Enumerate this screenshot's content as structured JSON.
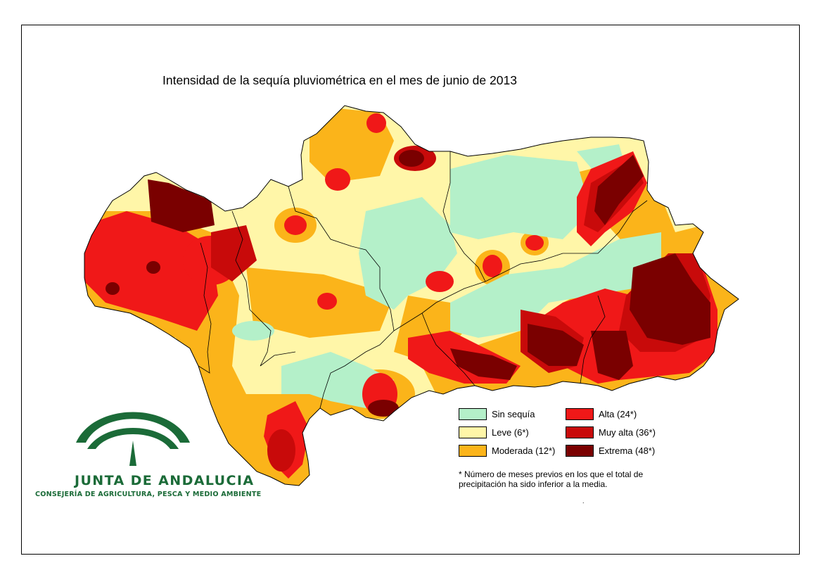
{
  "title": "Intensidad de la sequía pluviométrica en el mes de junio de 2013",
  "colors": {
    "sin_sequia": "#b4f0c9",
    "leve": "#fff6a8",
    "moderada": "#fbb41a",
    "alta": "#f01818",
    "muy_alta": "#c80a0a",
    "extrema": "#7a0000",
    "logo_green": "#1b6b38"
  },
  "legend": {
    "items": [
      {
        "key": "sin_sequia",
        "label": "Sin sequía",
        "color": "#b4f0c9"
      },
      {
        "key": "leve",
        "label": "Leve (6*)",
        "color": "#fff6a8"
      },
      {
        "key": "moderada",
        "label": "Moderada (12*)",
        "color": "#fbb41a"
      },
      {
        "key": "alta",
        "label": "Alta (24*)",
        "color": "#f01818"
      },
      {
        "key": "muy_alta",
        "label": "Muy alta (36*)",
        "color": "#c80a0a"
      },
      {
        "key": "extrema",
        "label": "Extrema (48*)",
        "color": "#7a0000"
      }
    ],
    "note": "* Número de meses previos en los que el total de precipitación ha sido inferior a la media.",
    "dot": "."
  },
  "logo": {
    "title": "JUNTA DE ANDALUCIA",
    "subtitle": "CONSEJERÍA DE AGRICULTURA, PESCA Y MEDIO AMBIENTE"
  }
}
